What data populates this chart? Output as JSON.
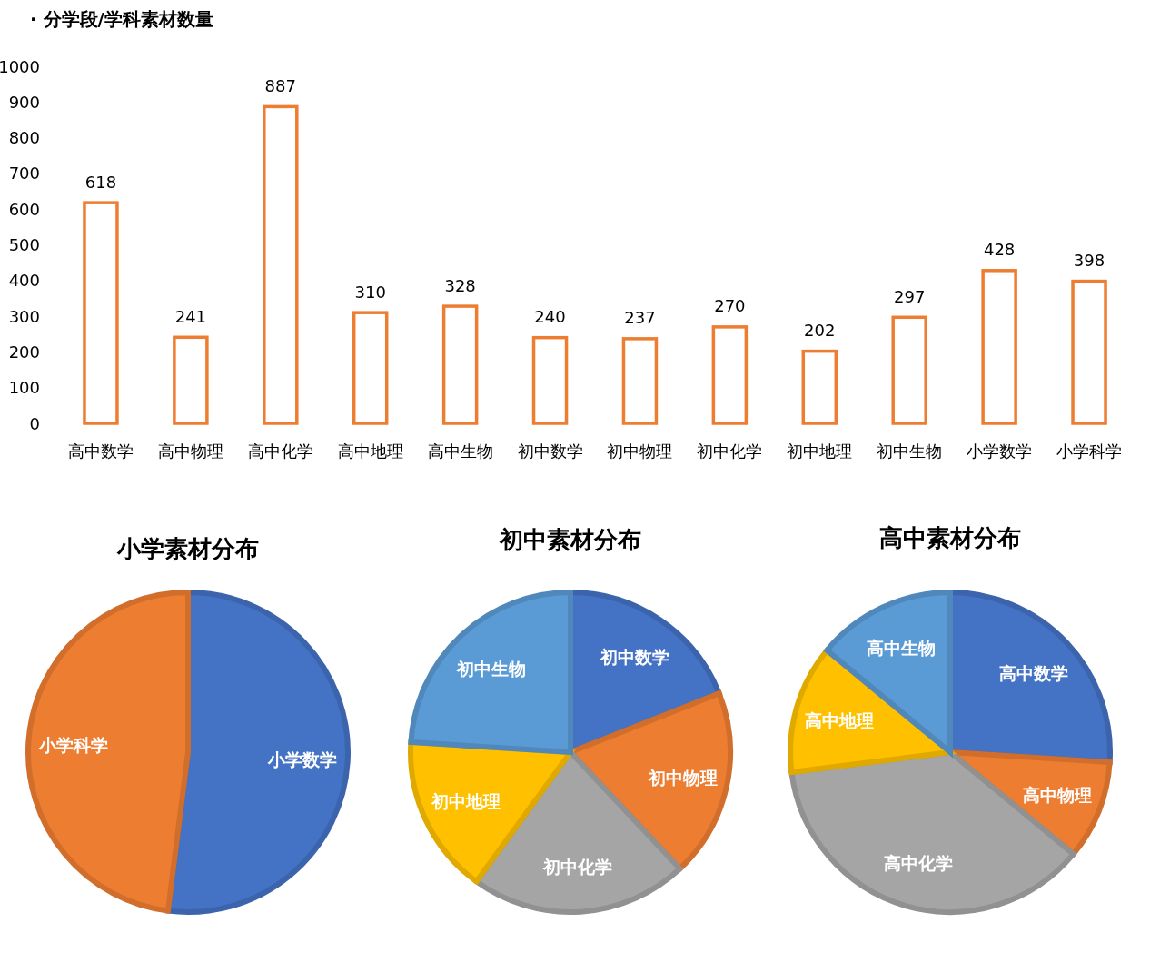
{
  "chart_data": [
    {
      "type": "bar",
      "title": "· 分学段/学科素材数量",
      "categories": [
        "高中数学",
        "高中物理",
        "高中化学",
        "高中地理",
        "高中生物",
        "初中数学",
        "初中物理",
        "初中化学",
        "初中地理",
        "初中生物",
        "小学数学",
        "小学科学"
      ],
      "values": [
        618,
        241,
        887,
        310,
        328,
        240,
        237,
        270,
        202,
        297,
        428,
        398
      ],
      "color": "#ed7d31",
      "ylim": [
        0,
        1000
      ],
      "yticks": [
        0,
        100,
        200,
        300,
        400,
        500,
        600,
        700,
        800,
        900,
        1000
      ],
      "data_labels": true
    },
    {
      "type": "pie",
      "title": "小学素材分布",
      "categories": [
        "小学数学",
        "小学科学"
      ],
      "values": [
        52,
        48
      ],
      "colors": [
        "#4472c4",
        "#ed7d31"
      ]
    },
    {
      "type": "pie",
      "title": "初中素材分布",
      "categories": [
        "初中数学",
        "初中物理",
        "初中化学",
        "初中地理",
        "初中生物"
      ],
      "values": [
        19,
        19,
        22,
        16,
        24
      ],
      "colors": [
        "#4472c4",
        "#ed7d31",
        "#a5a5a5",
        "#ffc000",
        "#5b9bd5"
      ]
    },
    {
      "type": "pie",
      "title": "高中素材分布",
      "categories": [
        "高中数学",
        "高中物理",
        "高中化学",
        "高中地理",
        "高中生物"
      ],
      "values": [
        26,
        10,
        37,
        13,
        14
      ],
      "colors": [
        "#4472c4",
        "#ed7d31",
        "#a5a5a5",
        "#ffc000",
        "#5b9bd5"
      ]
    }
  ]
}
